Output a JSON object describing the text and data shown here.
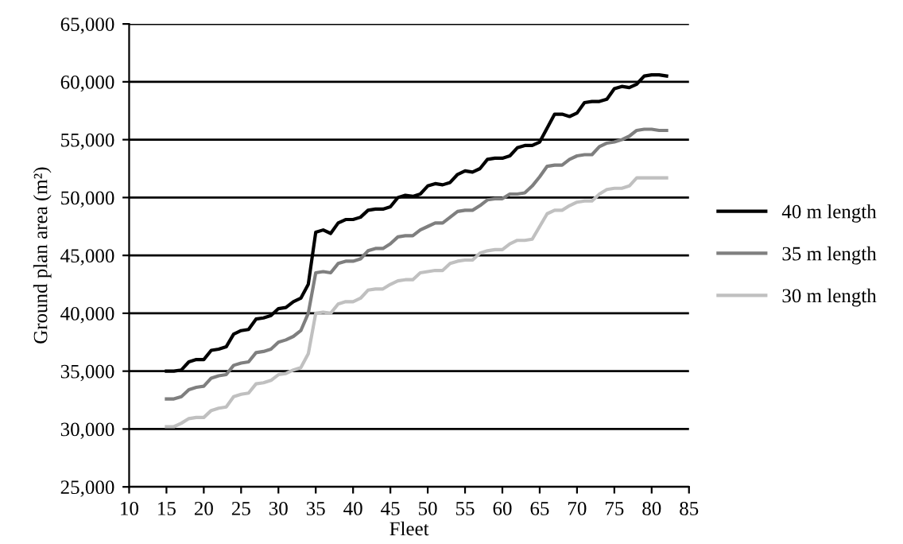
{
  "chart_data": {
    "type": "line",
    "xlabel": "Fleet",
    "ylabel": "Ground plan area (m²)",
    "x": [
      15,
      16,
      17,
      18,
      19,
      20,
      21,
      22,
      23,
      24,
      25,
      26,
      27,
      28,
      29,
      30,
      31,
      32,
      33,
      34,
      35,
      36,
      37,
      38,
      39,
      40,
      41,
      42,
      43,
      44,
      45,
      46,
      47,
      48,
      49,
      50,
      51,
      52,
      53,
      54,
      55,
      56,
      57,
      58,
      59,
      60,
      61,
      62,
      63,
      64,
      65,
      66,
      67,
      68,
      69,
      70,
      71,
      72,
      73,
      74,
      75,
      76,
      77,
      78,
      79,
      80,
      81,
      82
    ],
    "series": [
      {
        "name": "40 m length",
        "color": "#000000",
        "values": [
          35000,
          35000,
          35100,
          35800,
          36000,
          36000,
          36800,
          36900,
          37100,
          38200,
          38500,
          38600,
          39500,
          39600,
          39800,
          40400,
          40500,
          41000,
          41300,
          42500,
          47000,
          47200,
          46900,
          47800,
          48100,
          48100,
          48300,
          48900,
          49000,
          49000,
          49200,
          50000,
          50200,
          50100,
          50300,
          51000,
          51200,
          51100,
          51300,
          52000,
          52300,
          52200,
          52500,
          53300,
          53400,
          53400,
          53600,
          54300,
          54500,
          54500,
          54800,
          56000,
          57200,
          57200,
          57000,
          57300,
          58200,
          58300,
          58300,
          58500,
          59400,
          59600,
          59500,
          59800,
          60500,
          60600,
          60600,
          60500
        ]
      },
      {
        "name": "35 m length",
        "color": "#7f7f7f",
        "values": [
          32600,
          32600,
          32800,
          33400,
          33600,
          33700,
          34400,
          34600,
          34700,
          35500,
          35700,
          35800,
          36600,
          36700,
          36900,
          37500,
          37700,
          38000,
          38500,
          40000,
          43500,
          43600,
          43500,
          44300,
          44500,
          44500,
          44700,
          45400,
          45600,
          45600,
          46000,
          46600,
          46700,
          46700,
          47200,
          47500,
          47800,
          47800,
          48300,
          48800,
          48900,
          48900,
          49300,
          49800,
          49900,
          49900,
          50300,
          50300,
          50400,
          51000,
          51800,
          52700,
          52800,
          52800,
          53300,
          53600,
          53700,
          53700,
          54400,
          54700,
          54800,
          55000,
          55300,
          55800,
          55900,
          55900,
          55800,
          55800
        ]
      },
      {
        "name": "30 m length",
        "color": "#c0c0c0",
        "values": [
          30200,
          30200,
          30500,
          30900,
          31000,
          31000,
          31600,
          31800,
          31900,
          32800,
          33000,
          33100,
          33900,
          34000,
          34200,
          34700,
          34800,
          35100,
          35300,
          36500,
          40000,
          40100,
          40000,
          40800,
          41000,
          41000,
          41300,
          42000,
          42100,
          42100,
          42500,
          42800,
          42900,
          42900,
          43500,
          43600,
          43700,
          43700,
          44300,
          44500,
          44600,
          44600,
          45200,
          45400,
          45500,
          45500,
          46000,
          46300,
          46300,
          46400,
          47500,
          48600,
          48900,
          48900,
          49300,
          49600,
          49700,
          49700,
          50300,
          50700,
          50800,
          50800,
          51000,
          51700,
          51700,
          51700,
          51700,
          51700
        ]
      }
    ],
    "xlim": [
      10,
      85
    ],
    "xticks": [
      10,
      15,
      20,
      25,
      30,
      35,
      40,
      45,
      50,
      55,
      60,
      65,
      70,
      75,
      80,
      85
    ],
    "ylim": [
      25000,
      65000
    ],
    "yticks": [
      {
        "value": 25000,
        "label": "25,000"
      },
      {
        "value": 30000,
        "label": "30,000"
      },
      {
        "value": 35000,
        "label": "35,000"
      },
      {
        "value": 40000,
        "label": "40,000"
      },
      {
        "value": 45000,
        "label": "45,000"
      },
      {
        "value": 50000,
        "label": "50,000"
      },
      {
        "value": 55000,
        "label": "55,000"
      },
      {
        "value": 60000,
        "label": "60,000"
      },
      {
        "value": 65000,
        "label": "65,000"
      }
    ],
    "grid": "y",
    "legend": "right",
    "marker": "none",
    "line_style": "solid"
  }
}
